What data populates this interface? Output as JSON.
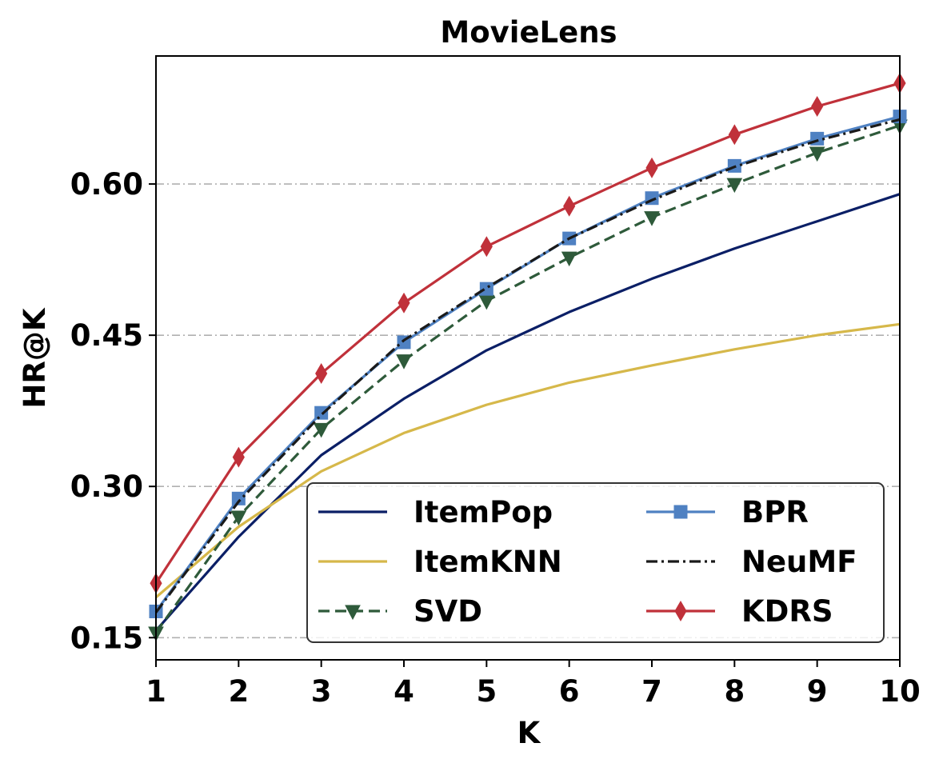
{
  "chart_data": {
    "type": "line",
    "title": "MovieLens",
    "xlabel": "K",
    "ylabel": "HR@K",
    "x": [
      1,
      2,
      3,
      4,
      5,
      6,
      7,
      8,
      9,
      10
    ],
    "xlim": [
      1,
      10
    ],
    "ylim": [
      0.128,
      0.727
    ],
    "yticks": [
      0.15,
      0.3,
      0.45,
      0.6
    ],
    "ytick_labels": [
      "0.15",
      "0.30",
      "0.45",
      "0.60"
    ],
    "xtick_labels": [
      "1",
      "2",
      "3",
      "4",
      "5",
      "6",
      "7",
      "8",
      "9",
      "10"
    ],
    "grid": "horizontal dash-dot",
    "legend": {
      "placement": "lower-right",
      "columns": 2
    },
    "series": [
      {
        "name": "ItemPop",
        "color": "#0b1f66",
        "dash": "solid",
        "marker": "none",
        "values": [
          0.157,
          0.25,
          0.331,
          0.387,
          0.435,
          0.473,
          0.506,
          0.536,
          0.563,
          0.59
        ]
      },
      {
        "name": "ItemKNN",
        "color": "#d6b84a",
        "dash": "solid",
        "marker": "none",
        "values": [
          0.19,
          0.26,
          0.315,
          0.353,
          0.381,
          0.403,
          0.42,
          0.436,
          0.45,
          0.461
        ]
      },
      {
        "name": "SVD",
        "color": "#2e5a3a",
        "dash": "dashed",
        "marker": "triangle-down",
        "values": [
          0.155,
          0.27,
          0.357,
          0.425,
          0.484,
          0.527,
          0.567,
          0.6,
          0.631,
          0.658
        ]
      },
      {
        "name": "BPR",
        "color": "#4f81c2",
        "dash": "solid",
        "marker": "square",
        "values": [
          0.176,
          0.288,
          0.373,
          0.443,
          0.496,
          0.546,
          0.586,
          0.618,
          0.645,
          0.667
        ]
      },
      {
        "name": "NeuMF",
        "color": "#1a1a1a",
        "dash": "dashdot",
        "marker": "none",
        "values": [
          0.175,
          0.285,
          0.371,
          0.445,
          0.497,
          0.546,
          0.584,
          0.617,
          0.643,
          0.664
        ]
      },
      {
        "name": "KDRS",
        "color": "#c0313a",
        "dash": "solid",
        "marker": "diamond",
        "values": [
          0.204,
          0.329,
          0.412,
          0.482,
          0.538,
          0.578,
          0.616,
          0.649,
          0.677,
          0.7
        ]
      }
    ]
  }
}
